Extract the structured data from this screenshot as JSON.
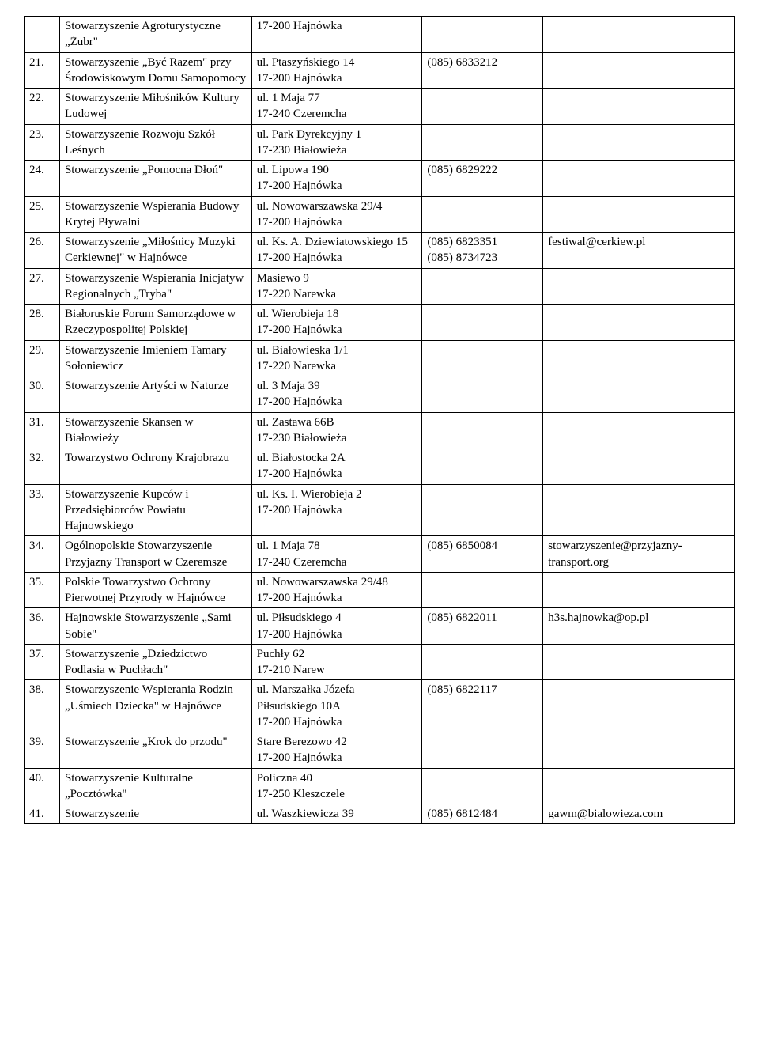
{
  "table": {
    "border_color": "#000000",
    "background_color": "#ffffff",
    "font_family": "Times New Roman",
    "font_size_pt": 12,
    "text_color": "#000000",
    "column_widths_pct": [
      5,
      27,
      24,
      17,
      27
    ],
    "rows": [
      {
        "num": "",
        "name": "Stowarzyszenie Agroturystyczne „Żubr\"",
        "addr": "17-200 Hajnówka",
        "phone": "",
        "email": ""
      },
      {
        "num": "21.",
        "name": "Stowarzyszenie „Być Razem\" przy Środowiskowym Domu Samopomocy",
        "addr": "ul. Ptaszyńskiego 14\n17-200 Hajnówka",
        "phone": "(085) 6833212",
        "email": ""
      },
      {
        "num": "22.",
        "name": "Stowarzyszenie Miłośników Kultury Ludowej",
        "addr": "ul. 1 Maja 77\n17-240 Czeremcha",
        "phone": "",
        "email": ""
      },
      {
        "num": "23.",
        "name": "Stowarzyszenie Rozwoju Szkół Leśnych",
        "addr": "ul. Park Dyrekcyjny 1\n17-230 Białowieża",
        "phone": "",
        "email": ""
      },
      {
        "num": "24.",
        "name": "Stowarzyszenie „Pomocna Dłoń\"",
        "addr": "ul. Lipowa 190\n17-200 Hajnówka",
        "phone": "(085) 6829222",
        "email": ""
      },
      {
        "num": "25.",
        "name": "Stowarzyszenie Wspierania Budowy Krytej Pływalni",
        "addr": "ul. Nowowarszawska 29/4\n17-200 Hajnówka",
        "phone": "",
        "email": ""
      },
      {
        "num": "26.",
        "name": "Stowarzyszenie „Miłośnicy Muzyki Cerkiewnej\" w Hajnówce",
        "addr": "ul. Ks. A. Dziewiatowskiego 15\n17-200 Hajnówka",
        "phone": "(085) 6823351\n(085) 8734723",
        "email": "festiwal@cerkiew.pl"
      },
      {
        "num": "27.",
        "name": "Stowarzyszenie Wspierania Inicjatyw Regionalnych „Tryba\"",
        "addr": "Masiewo 9\n17-220 Narewka",
        "phone": "",
        "email": ""
      },
      {
        "num": "28.",
        "name": "Białoruskie Forum Samorządowe w Rzeczypospolitej Polskiej",
        "addr": "ul. Wierobieja 18\n17-200 Hajnówka",
        "phone": "",
        "email": ""
      },
      {
        "num": "29.",
        "name": "Stowarzyszenie Imieniem Tamary Sołoniewicz",
        "addr": "ul. Białowieska 1/1\n17-220 Narewka",
        "phone": "",
        "email": ""
      },
      {
        "num": "30.",
        "name": "Stowarzyszenie Artyści w Naturze",
        "addr": "ul. 3 Maja 39\n17-200 Hajnówka",
        "phone": "",
        "email": ""
      },
      {
        "num": "31.",
        "name": "Stowarzyszenie Skansen w Białowieży",
        "addr": "ul. Zastawa 66B\n17-230 Białowieża",
        "phone": "",
        "email": ""
      },
      {
        "num": "32.",
        "name": "Towarzystwo Ochrony Krajobrazu",
        "addr": "ul. Białostocka 2A\n17-200 Hajnówka",
        "phone": "",
        "email": ""
      },
      {
        "num": "33.",
        "name": "Stowarzyszenie Kupców i Przedsiębiorców Powiatu Hajnowskiego",
        "addr": "ul. Ks. I. Wierobieja 2\n17-200 Hajnówka",
        "phone": "",
        "email": ""
      },
      {
        "num": "34.",
        "name": "Ogólnopolskie Stowarzyszenie Przyjazny Transport w Czeremsze",
        "addr": "ul. 1 Maja 78\n17-240 Czeremcha",
        "phone": "(085) 6850084",
        "email": "stowarzyszenie@przyjazny-transport.org"
      },
      {
        "num": "35.",
        "name": "Polskie Towarzystwo Ochrony Pierwotnej Przyrody w Hajnówce",
        "addr": "ul. Nowowarszawska 29/48\n17-200 Hajnówka",
        "phone": "",
        "email": ""
      },
      {
        "num": "36.",
        "name": "Hajnowskie Stowarzyszenie „Sami Sobie\"",
        "addr": "ul. Piłsudskiego 4\n17-200 Hajnówka",
        "phone": "(085) 6822011",
        "email": "h3s.hajnowka@op.pl"
      },
      {
        "num": "37.",
        "name": "Stowarzyszenie „Dziedzictwo Podlasia w Puchłach\"",
        "addr": "Puchły 62\n17-210 Narew",
        "phone": "",
        "email": ""
      },
      {
        "num": "38.",
        "name": "Stowarzyszenie Wspierania Rodzin „Uśmiech Dziecka\" w Hajnówce",
        "addr": "ul. Marszałka Józefa Piłsudskiego 10A\n17-200 Hajnówka",
        "phone": "(085) 6822117",
        "email": ""
      },
      {
        "num": "39.",
        "name": "Stowarzyszenie „Krok do przodu\"",
        "addr": "Stare Berezowo 42\n17-200 Hajnówka",
        "phone": "",
        "email": ""
      },
      {
        "num": "40.",
        "name": "Stowarzyszenie Kulturalne „Pocztówka\"",
        "addr": "Policzna 40\n17-250 Kleszczele",
        "phone": "",
        "email": ""
      },
      {
        "num": "41.",
        "name": "Stowarzyszenie",
        "addr": "ul. Waszkiewicza 39",
        "phone": "(085) 6812484",
        "email": "gawm@bialowieza.com"
      }
    ]
  }
}
